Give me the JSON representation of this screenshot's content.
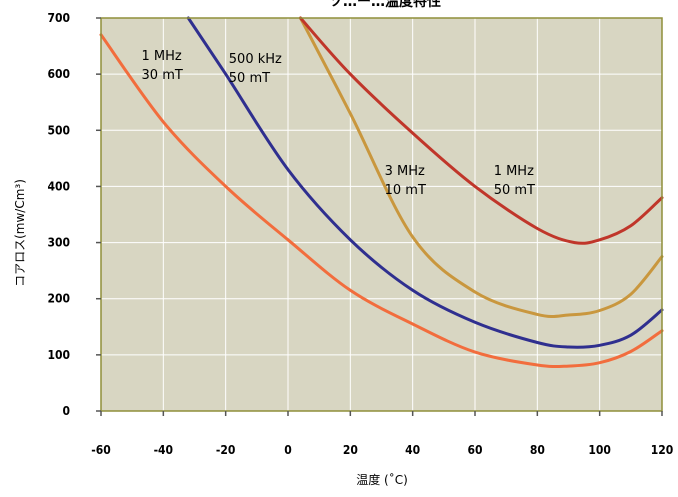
{
  "chart_data": {
    "type": "line",
    "title": "ソ…ー…温度特性",
    "xlabel": "温度 (˚C)",
    "ylabel": "コアロス(mw/Cm³)",
    "xlim": [
      -60,
      120
    ],
    "ylim": [
      0,
      700
    ],
    "x_ticks": [
      -60,
      -40,
      -20,
      0,
      20,
      40,
      60,
      80,
      100,
      120
    ],
    "y_ticks": [
      0,
      100,
      200,
      300,
      400,
      500,
      600,
      700
    ],
    "grid": true,
    "plot_background": "#d8d6c2",
    "grid_color": "#ffffff",
    "frame_color": "#8f8f3a",
    "series": [
      {
        "name": "1 MHz 30 mT",
        "color": "#f26d3d",
        "points": [
          [
            -60,
            670
          ],
          [
            -40,
            515
          ],
          [
            -20,
            400
          ],
          [
            0,
            305
          ],
          [
            20,
            215
          ],
          [
            40,
            155
          ],
          [
            60,
            105
          ],
          [
            80,
            82
          ],
          [
            90,
            80
          ],
          [
            100,
            86
          ],
          [
            110,
            106
          ],
          [
            120,
            143
          ]
        ]
      },
      {
        "name": "500 kHz 50 mT",
        "color": "#2f2f8f",
        "points": [
          [
            -32,
            700
          ],
          [
            -20,
            600
          ],
          [
            0,
            430
          ],
          [
            20,
            305
          ],
          [
            40,
            215
          ],
          [
            60,
            158
          ],
          [
            80,
            122
          ],
          [
            90,
            114
          ],
          [
            100,
            117
          ],
          [
            110,
            135
          ],
          [
            120,
            180
          ]
        ]
      },
      {
        "name": "3 MHz 10 mT",
        "color": "#c9973e",
        "points": [
          [
            4,
            700
          ],
          [
            20,
            530
          ],
          [
            40,
            310
          ],
          [
            60,
            212
          ],
          [
            80,
            172
          ],
          [
            90,
            171
          ],
          [
            100,
            179
          ],
          [
            110,
            208
          ],
          [
            120,
            275
          ]
        ]
      },
      {
        "name": "1 MHz 50 mT",
        "color": "#c0362a",
        "points": [
          [
            4,
            700
          ],
          [
            20,
            600
          ],
          [
            40,
            495
          ],
          [
            60,
            400
          ],
          [
            80,
            325
          ],
          [
            92,
            300
          ],
          [
            100,
            305
          ],
          [
            110,
            330
          ],
          [
            120,
            380
          ]
        ]
      }
    ],
    "annotations": [
      {
        "line1": "1 MHz",
        "line2": "30 mT",
        "x": -47,
        "y": 625
      },
      {
        "line1": "500 kHz",
        "line2": "50 mT",
        "x": -19,
        "y": 620
      },
      {
        "line1": "3 MHz",
        "line2": "10 mT",
        "x": 31,
        "y": 420
      },
      {
        "line1": "1 MHz",
        "line2": "50 mT",
        "x": 66,
        "y": 420
      }
    ]
  }
}
